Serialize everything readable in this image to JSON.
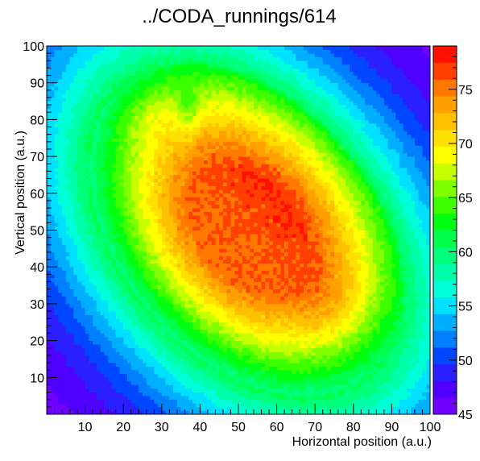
{
  "chart_data": {
    "type": "heatmap",
    "title": "../CODA_runnings/614",
    "xlabel": "Horizontal position (a.u.)",
    "ylabel": "Vertical position (a.u.)",
    "xlim": [
      0,
      100
    ],
    "ylim": [
      0,
      100
    ],
    "zlim": [
      45,
      79
    ],
    "x_ticks": [
      10,
      20,
      30,
      40,
      50,
      60,
      70,
      80,
      90,
      100
    ],
    "y_ticks": [
      10,
      20,
      30,
      40,
      50,
      60,
      70,
      80,
      90,
      100
    ],
    "z_ticks": [
      45,
      50,
      55,
      60,
      65,
      70,
      75
    ],
    "bins": [
      100,
      100
    ],
    "background_value": 45,
    "peak_value": 77,
    "color_scale": [
      "#7000ff",
      "#5000ff",
      "#2a1fff",
      "#0047ff",
      "#0080ff",
      "#00b0ff",
      "#00e0ff",
      "#00ffd6",
      "#00ffaa",
      "#00ff7a",
      "#00ff4a",
      "#00ff10",
      "#3cff00",
      "#80ff00",
      "#c8ff00",
      "#ffff00",
      "#ffe000",
      "#ffc000",
      "#ffa000",
      "#ff7800",
      "#ff4000",
      "#ff1000"
    ],
    "grid": false,
    "legend": "colorbar-right"
  }
}
